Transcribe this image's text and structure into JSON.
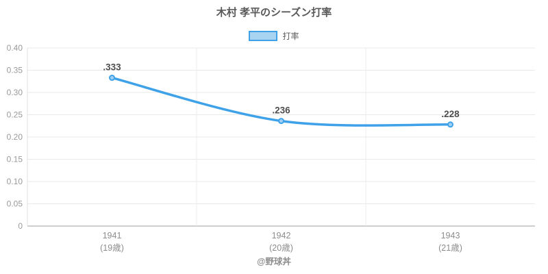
{
  "title": "木村 孝平のシーズン打率",
  "legend": {
    "label": "打率"
  },
  "footer": "@野球丼",
  "colors": {
    "line": "#3fa2e9",
    "point_fill": "#9fd0f3",
    "legend_fill": "#a8d4f2",
    "grid": "#e8e8e8",
    "grid_vertical": "#ededed",
    "axis": "#bdbdbd",
    "axis_left": "#e2e2e2",
    "title_text": "#595959",
    "point_label_text": "#4d4d4d",
    "ytick_text": "#999999",
    "xtick_text": "#8c8c8c",
    "legend_text": "#595959",
    "footer_text": "#8e8e8e"
  },
  "chart_data": {
    "type": "line",
    "title": "木村 孝平のシーズン打率",
    "categories": [
      "1941",
      "1942",
      "1943"
    ],
    "category_sublabels": [
      "(19歳)",
      "(20歳)",
      "(21歳)"
    ],
    "series": [
      {
        "name": "打率",
        "values": [
          0.333,
          0.236,
          0.228
        ]
      }
    ],
    "point_labels": [
      ".333",
      ".236",
      ".228"
    ],
    "xlabel": "",
    "ylabel": "",
    "ylim": [
      0,
      0.4
    ],
    "ytick_step": 0.05,
    "ytick_labels": [
      "0.40",
      "0.35",
      "0.30",
      "0.25",
      "0.20",
      "0.15",
      "0.10",
      "0.05",
      "0"
    ],
    "grid": true,
    "legend_position": "top",
    "smooth": true
  }
}
